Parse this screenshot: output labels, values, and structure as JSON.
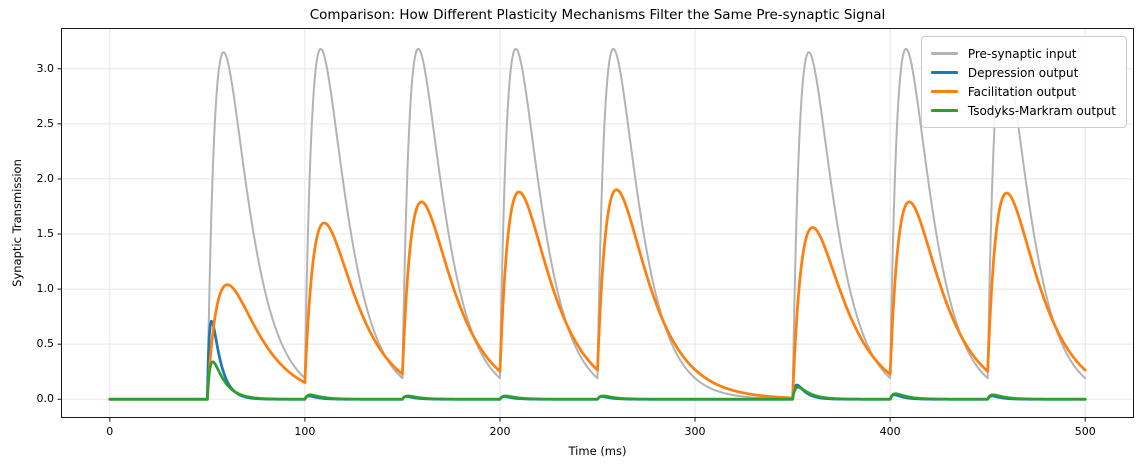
{
  "chart_data": {
    "type": "line",
    "title": "Comparison: How Different Plasticity Mechanisms Filter the Same Pre-synaptic Signal",
    "xlabel": "Time (ms)",
    "ylabel": "Synaptic Transmission",
    "xlim": [
      -25,
      525
    ],
    "ylim": [
      -0.17,
      3.37
    ],
    "xticks": [
      0,
      100,
      200,
      300,
      400,
      500
    ],
    "yticks": [
      0.0,
      0.5,
      1.0,
      1.5,
      2.0,
      2.5,
      3.0
    ],
    "grid": true,
    "grid_color": "#e7e7e7",
    "spine_color": "#1a1a1a",
    "legend_position": "upper right",
    "t_range_ms": [
      0,
      500
    ],
    "t_step_ms": 0.5,
    "spike_times_ms": [
      50,
      100,
      150,
      200,
      250,
      350,
      400,
      450
    ],
    "series": [
      {
        "name": "Pre-synaptic input",
        "color": "#b3b3b3",
        "line_width": 2,
        "rise_tau_ms": 6,
        "decay_tau_ms": 12,
        "peak_values": [
          3.15,
          3.18,
          3.18,
          3.18,
          3.18,
          3.15,
          3.18,
          3.18
        ]
      },
      {
        "name": "Depression output",
        "color": "#1f77b4",
        "line_width": 2.75,
        "rise_tau_ms": 1.2,
        "decay_tau_ms": 4.5,
        "peak_values": [
          0.71,
          0.03,
          0.025,
          0.025,
          0.025,
          0.13,
          0.04,
          0.03
        ]
      },
      {
        "name": "Facilitation output",
        "color": "#ff7f0e",
        "line_width": 2.75,
        "rise_tau_ms": 7,
        "decay_tau_ms": 16,
        "peak_values": [
          1.04,
          1.6,
          1.79,
          1.88,
          1.9,
          1.56,
          1.79,
          1.87
        ]
      },
      {
        "name": "Tsodyks-Markram output",
        "color": "#2ca02c",
        "line_width": 2.75,
        "rise_tau_ms": 1.5,
        "decay_tau_ms": 6,
        "peak_values": [
          0.34,
          0.04,
          0.03,
          0.03,
          0.03,
          0.11,
          0.05,
          0.04
        ]
      }
    ]
  }
}
